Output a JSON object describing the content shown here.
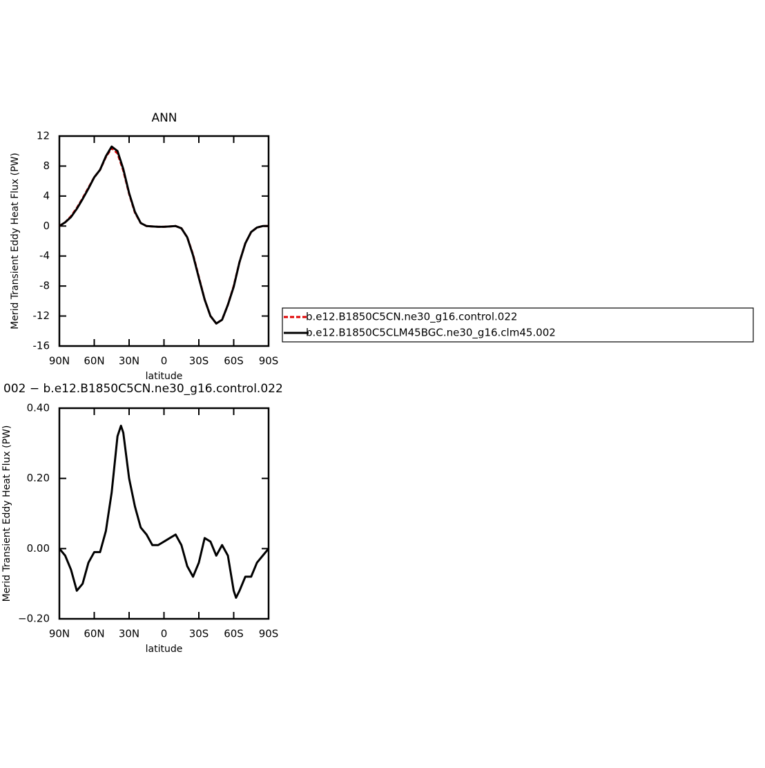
{
  "chart_data": [
    {
      "type": "line",
      "title": "ANN",
      "xlabel": "latitude",
      "ylabel": "Merid Transient Eddy Heat Flux (PW)",
      "x": [
        90,
        85,
        80,
        75,
        70,
        65,
        60,
        55,
        50,
        45,
        40,
        35,
        30,
        25,
        20,
        15,
        10,
        5,
        0,
        -5,
        -10,
        -15,
        -20,
        -25,
        -30,
        -35,
        -40,
        -45,
        -50,
        -55,
        -60,
        -65,
        -70,
        -75,
        -80,
        -85,
        -90
      ],
      "xlim": [
        90,
        -90
      ],
      "xticks": [
        {
          "value": 90,
          "label": "90N"
        },
        {
          "value": 60,
          "label": "60N"
        },
        {
          "value": 30,
          "label": "30N"
        },
        0,
        {
          "value": -30,
          "label": "30S"
        },
        {
          "value": -60,
          "label": "60S"
        },
        {
          "value": -90,
          "label": "90S"
        }
      ],
      "ylim": [
        -16,
        12
      ],
      "yticks": [
        12,
        8,
        4,
        0,
        -4,
        -8,
        -12,
        -16
      ],
      "legend": "right",
      "series": [
        {
          "name": "b.e12.B1850C5CN.ne30_g16.control.022",
          "color": "#e00000",
          "style": "dashed",
          "values": [
            0,
            0.5,
            1.3,
            2.4,
            3.7,
            5.1,
            6.5,
            7.5,
            9.2,
            10.4,
            9.7,
            7.4,
            4.3,
            1.8,
            0.4,
            0,
            -0.05,
            -0.1,
            -0.1,
            -0.05,
            0,
            -0.3,
            -1.5,
            -3.8,
            -6.8,
            -9.8,
            -12,
            -13,
            -12.5,
            -10.5,
            -8,
            -4.8,
            -2.3,
            -0.8,
            -0.2,
            0,
            0
          ]
        },
        {
          "name": "b.e12.B1850C5CLM45BGC.ne30_g16.clm45.002",
          "color": "#000000",
          "style": "solid",
          "values": [
            0,
            0.5,
            1.2,
            2.3,
            3.6,
            5,
            6.5,
            7.5,
            9.3,
            10.6,
            10,
            7.6,
            4.4,
            1.9,
            0.4,
            0,
            -0.05,
            -0.1,
            -0.1,
            -0.05,
            0,
            -0.3,
            -1.5,
            -3.9,
            -6.9,
            -9.8,
            -12,
            -13,
            -12.5,
            -10.5,
            -8.1,
            -4.8,
            -2.3,
            -0.8,
            -0.2,
            0,
            0
          ]
        }
      ]
    },
    {
      "type": "line",
      "title": "002 − b.e12.B1850C5CN.ne30_g16.control.022",
      "xlabel": "latitude",
      "ylabel": "Merid Transient Eddy Heat Flux (PW)",
      "x": [
        90,
        85,
        80,
        75,
        70,
        65,
        60,
        55,
        50,
        45,
        40,
        37,
        35,
        30,
        25,
        20,
        15,
        10,
        5,
        0,
        -5,
        -10,
        -15,
        -20,
        -25,
        -30,
        -35,
        -40,
        -45,
        -50,
        -55,
        -60,
        -62,
        -65,
        -70,
        -75,
        -80,
        -85,
        -90
      ],
      "xlim": [
        90,
        -90
      ],
      "xticks": [
        {
          "value": 90,
          "label": "90N"
        },
        {
          "value": 60,
          "label": "60N"
        },
        {
          "value": 30,
          "label": "30N"
        },
        0,
        {
          "value": -30,
          "label": "30S"
        },
        {
          "value": -60,
          "label": "60S"
        },
        {
          "value": -90,
          "label": "90S"
        }
      ],
      "ylim": [
        -0.2,
        0.4
      ],
      "yticks": [
        {
          "value": 0.4,
          "label": "0.40"
        },
        {
          "value": 0.2,
          "label": "0.20"
        },
        {
          "value": 0,
          "label": "0.00"
        },
        {
          "value": -0.2,
          "label": "−0.20"
        }
      ],
      "color": "#000000",
      "values": [
        0,
        -0.02,
        -0.06,
        -0.12,
        -0.1,
        -0.04,
        -0.01,
        -0.01,
        0.05,
        0.16,
        0.32,
        0.35,
        0.33,
        0.2,
        0.12,
        0.06,
        0.04,
        0.01,
        0.01,
        0.02,
        0.03,
        0.04,
        0.01,
        -0.05,
        -0.08,
        -0.04,
        0.03,
        0.02,
        -0.02,
        0.01,
        -0.02,
        -0.12,
        -0.14,
        -0.12,
        -0.08,
        -0.08,
        -0.04,
        -0.02,
        0
      ]
    }
  ]
}
